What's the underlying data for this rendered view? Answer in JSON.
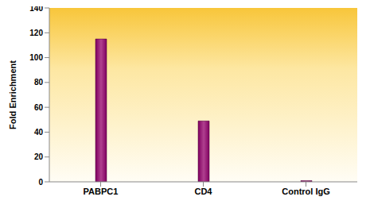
{
  "chart_data": {
    "type": "bar",
    "categories": [
      "PABPC1",
      "CD4",
      "Control IgG"
    ],
    "values": [
      115,
      49,
      1
    ],
    "color": "#800060",
    "ylabel": "Fold Enrichment",
    "ylim": [
      0,
      140
    ],
    "yticks": [
      0,
      20,
      40,
      60,
      80,
      100,
      120,
      140
    ],
    "grid": false
  }
}
